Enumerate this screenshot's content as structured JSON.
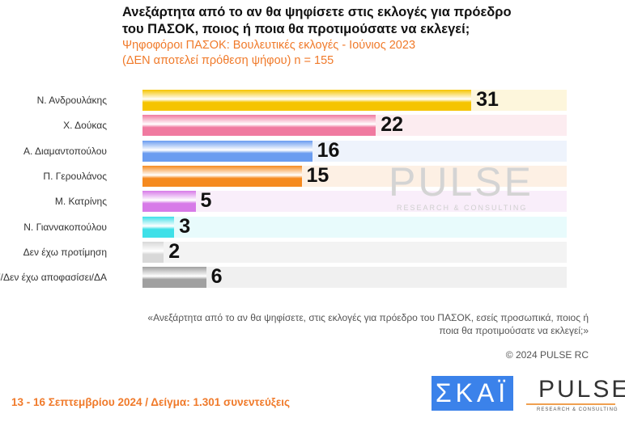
{
  "header": {
    "title_line1": "Ανεξάρτητα από το αν θα ψηφίσετε στις εκλογές για πρόεδρο",
    "title_line2": "του ΠΑΣΟΚ, ποιος ή ποια θα προτιμούσατε να εκλεγεί;",
    "subtitle_line1": "Ψηφοφόροι ΠΑΣΟΚ: Βουλευτικές εκλογές - Ιούνιος 2023",
    "subtitle_line2": "(ΔΕΝ αποτελεί πρόθεση ψήφου)   n = 155"
  },
  "chart_data": {
    "type": "bar",
    "orientation": "horizontal",
    "categories": [
      "Ν. Ανδρουλάκης",
      "Χ. Δούκας",
      "Α. Διαμαντοπούλου",
      "Π. Γερουλάνος",
      "Μ. Κατρίνης",
      "Ν. Γιαννακοπούλου",
      "Δεν έχω προτίμηση",
      "ΔΓ/Δεν έχω αποφασίσει/ΔΑ"
    ],
    "values": [
      31,
      22,
      16,
      15,
      5,
      3,
      2,
      6
    ],
    "colors": [
      "#f5c400",
      "#f07aa0",
      "#6a9cf0",
      "#f58a1f",
      "#d77ae8",
      "#3ee0e8",
      "#d8d8d8",
      "#a0a0a0"
    ],
    "track_colors": [
      "#fdf6dc",
      "#fcecf0",
      "#eef3fc",
      "#fdf0e4",
      "#f9eefa",
      "#e8fbfc",
      "#f3f3f3",
      "#f0f0f0"
    ],
    "xlim": [
      0,
      40
    ]
  },
  "watermark": {
    "name": "PULSE",
    "sub": "RESEARCH & CONSULTING"
  },
  "footer": {
    "question": "«Ανεξάρτητα από το αν θα ψηφίσετε, στις εκλογές για πρόεδρο του ΠΑΣΟΚ, εσείς προσωπικά, ποιος ή ποια θα προτιμούσατε να εκλεγεί;»",
    "copyright": "© 2024 PULSE RC",
    "date_sample": "13 - 16 Σεπτεμβρίου 2024  /  Δείγμα:  1.301 συνεντεύξεις",
    "skai_logo": "ΣΚΑΪ",
    "pulse_logo": "PULSE",
    "pulse_sub": "RESEARCH & CONSULTING"
  }
}
